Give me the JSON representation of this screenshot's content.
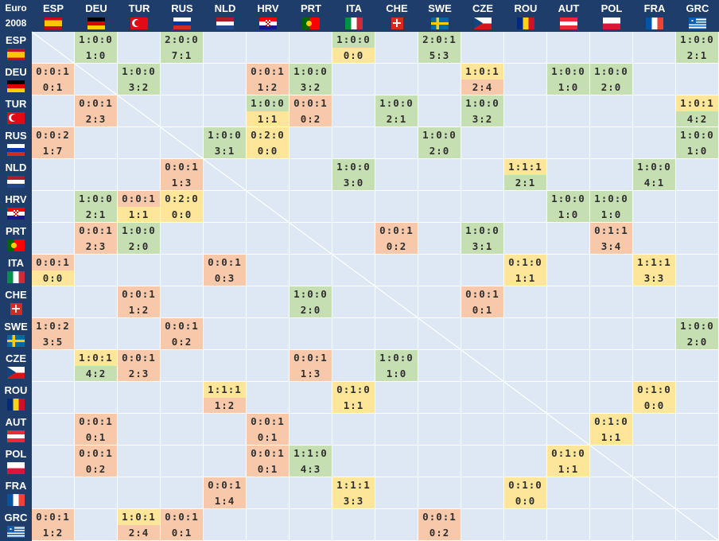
{
  "corner": {
    "line1": "Euro",
    "line2": "2008"
  },
  "teams": [
    "ESP",
    "DEU",
    "TUR",
    "RUS",
    "NLD",
    "HRV",
    "PRT",
    "ITA",
    "CHE",
    "SWE",
    "CZE",
    "ROU",
    "AUT",
    "POL",
    "FRA",
    "GRC"
  ],
  "legend_colors": {
    "win": "#c5dfb3",
    "loss": "#f7c9aa",
    "draw": "#fde59a"
  },
  "results": [
    [
      [
        1,
        "1:0:0",
        "1:0",
        "g",
        "g"
      ],
      [
        3,
        "2:0:0",
        "7:1",
        "g",
        "g"
      ],
      [
        7,
        "1:0:0",
        "0:0",
        "g",
        "y"
      ],
      [
        9,
        "2:0:1",
        "5:3",
        "g",
        "g"
      ],
      [
        15,
        "1:0:0",
        "2:1",
        "g",
        "g"
      ]
    ],
    [
      [
        0,
        "0:0:1",
        "0:1",
        "o",
        "o"
      ],
      [
        2,
        "1:0:0",
        "3:2",
        "g",
        "g"
      ],
      [
        5,
        "0:0:1",
        "1:2",
        "o",
        "o"
      ],
      [
        6,
        "1:0:0",
        "3:2",
        "g",
        "g"
      ],
      [
        10,
        "1:0:1",
        "2:4",
        "y",
        "o"
      ],
      [
        12,
        "1:0:0",
        "1:0",
        "g",
        "g"
      ],
      [
        13,
        "1:0:0",
        "2:0",
        "g",
        "g"
      ]
    ],
    [
      [
        1,
        "0:0:1",
        "2:3",
        "o",
        "o"
      ],
      [
        5,
        "1:0:0",
        "1:1",
        "g",
        "y"
      ],
      [
        6,
        "0:0:1",
        "0:2",
        "o",
        "o"
      ],
      [
        8,
        "1:0:0",
        "2:1",
        "g",
        "g"
      ],
      [
        10,
        "1:0:0",
        "3:2",
        "g",
        "g"
      ],
      [
        15,
        "1:0:1",
        "4:2",
        "y",
        "g"
      ]
    ],
    [
      [
        0,
        "0:0:2",
        "1:7",
        "o",
        "o"
      ],
      [
        4,
        "1:0:0",
        "3:1",
        "g",
        "g"
      ],
      [
        5,
        "0:2:0",
        "0:0",
        "y",
        "y"
      ],
      [
        9,
        "1:0:0",
        "2:0",
        "g",
        "g"
      ],
      [
        15,
        "1:0:0",
        "1:0",
        "g",
        "g"
      ]
    ],
    [
      [
        3,
        "0:0:1",
        "1:3",
        "o",
        "o"
      ],
      [
        7,
        "1:0:0",
        "3:0",
        "g",
        "g"
      ],
      [
        11,
        "1:1:1",
        "2:1",
        "y",
        "g"
      ],
      [
        14,
        "1:0:0",
        "4:1",
        "g",
        "g"
      ]
    ],
    [
      [
        1,
        "1:0:0",
        "2:1",
        "g",
        "g"
      ],
      [
        2,
        "0:0:1",
        "1:1",
        "o",
        "y"
      ],
      [
        3,
        "0:2:0",
        "0:0",
        "y",
        "y"
      ],
      [
        12,
        "1:0:0",
        "1:0",
        "g",
        "g"
      ],
      [
        13,
        "1:0:0",
        "1:0",
        "g",
        "g"
      ]
    ],
    [
      [
        1,
        "0:0:1",
        "2:3",
        "o",
        "o"
      ],
      [
        2,
        "1:0:0",
        "2:0",
        "g",
        "g"
      ],
      [
        8,
        "0:0:1",
        "0:2",
        "o",
        "o"
      ],
      [
        10,
        "1:0:0",
        "3:1",
        "g",
        "g"
      ],
      [
        13,
        "0:1:1",
        "3:4",
        "o",
        "o"
      ]
    ],
    [
      [
        0,
        "0:0:1",
        "0:0",
        "o",
        "y"
      ],
      [
        4,
        "0:0:1",
        "0:3",
        "o",
        "o"
      ],
      [
        11,
        "0:1:0",
        "1:1",
        "y",
        "y"
      ],
      [
        14,
        "1:1:1",
        "3:3",
        "y",
        "y"
      ]
    ],
    [
      [
        2,
        "0:0:1",
        "1:2",
        "o",
        "o"
      ],
      [
        6,
        "1:0:0",
        "2:0",
        "g",
        "g"
      ],
      [
        10,
        "0:0:1",
        "0:1",
        "o",
        "o"
      ]
    ],
    [
      [
        0,
        "1:0:2",
        "3:5",
        "o",
        "o"
      ],
      [
        3,
        "0:0:1",
        "0:2",
        "o",
        "o"
      ],
      [
        15,
        "1:0:0",
        "2:0",
        "g",
        "g"
      ]
    ],
    [
      [
        1,
        "1:0:1",
        "4:2",
        "y",
        "g"
      ],
      [
        2,
        "0:0:1",
        "2:3",
        "o",
        "o"
      ],
      [
        6,
        "0:0:1",
        "1:3",
        "o",
        "o"
      ],
      [
        8,
        "1:0:0",
        "1:0",
        "g",
        "g"
      ]
    ],
    [
      [
        4,
        "1:1:1",
        "1:2",
        "y",
        "o"
      ],
      [
        7,
        "0:1:0",
        "1:1",
        "y",
        "y"
      ],
      [
        14,
        "0:1:0",
        "0:0",
        "y",
        "y"
      ]
    ],
    [
      [
        1,
        "0:0:1",
        "0:1",
        "o",
        "o"
      ],
      [
        5,
        "0:0:1",
        "0:1",
        "o",
        "o"
      ],
      [
        13,
        "0:1:0",
        "1:1",
        "y",
        "y"
      ]
    ],
    [
      [
        1,
        "0:0:1",
        "0:2",
        "o",
        "o"
      ],
      [
        5,
        "0:0:1",
        "0:1",
        "o",
        "o"
      ],
      [
        6,
        "1:1:0",
        "4:3",
        "g",
        "g"
      ],
      [
        12,
        "0:1:0",
        "1:1",
        "y",
        "y"
      ]
    ],
    [
      [
        4,
        "0:0:1",
        "1:4",
        "o",
        "o"
      ],
      [
        7,
        "1:1:1",
        "3:3",
        "y",
        "y"
      ],
      [
        11,
        "0:1:0",
        "0:0",
        "y",
        "y"
      ]
    ],
    [
      [
        0,
        "0:0:1",
        "1:2",
        "o",
        "o"
      ],
      [
        2,
        "1:0:1",
        "2:4",
        "y",
        "o"
      ],
      [
        3,
        "0:0:1",
        "0:1",
        "o",
        "o"
      ],
      [
        9,
        "0:0:1",
        "0:2",
        "o",
        "o"
      ]
    ]
  ]
}
